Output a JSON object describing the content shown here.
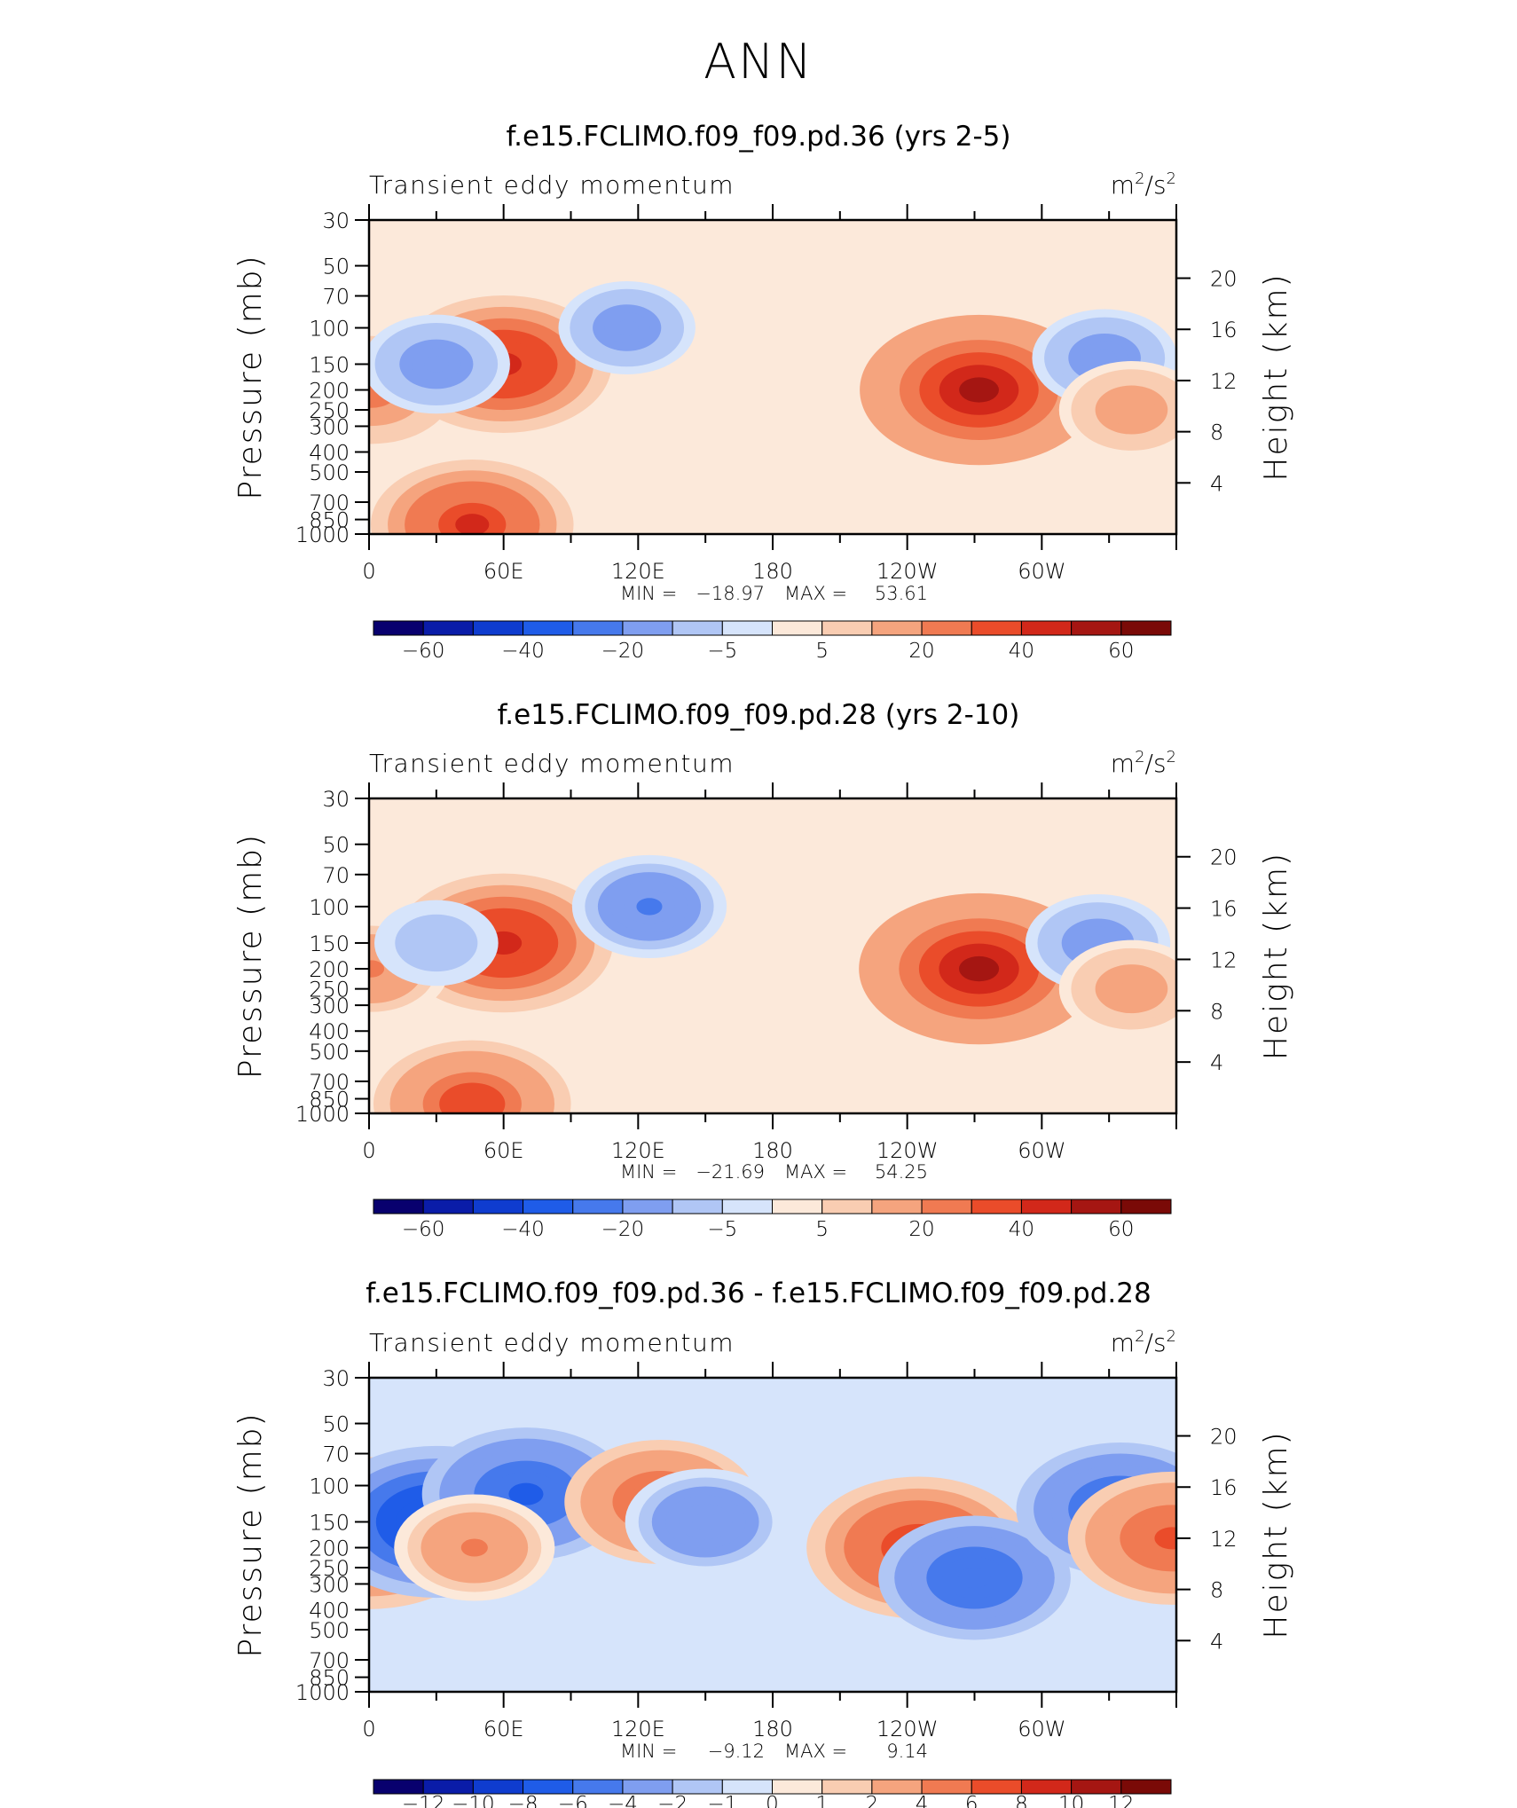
{
  "figure": {
    "title": "ANN"
  },
  "colors": {
    "absolute_scale": [
      "#08006e",
      "#0a1ca8",
      "#0f3ccf",
      "#1f5ce8",
      "#4679ec",
      "#7f9ef0",
      "#b0c6f5",
      "#d6e4fb",
      "#fce9da",
      "#f9cdb2",
      "#f5a47e",
      "#f07a52",
      "#ea4c2a",
      "#d2281a",
      "#a51612",
      "#7a0a07"
    ],
    "difference_scale": [
      "#08006e",
      "#0a1ca8",
      "#0f3ccf",
      "#1f5ce8",
      "#4679ec",
      "#7f9ef0",
      "#b0c6f5",
      "#d6e4fb",
      "#fce9da",
      "#f9cdb2",
      "#f5a47e",
      "#f07a52",
      "#ea4c2a",
      "#d2281a",
      "#a51612",
      "#7a0a07"
    ],
    "topography": "#000000"
  },
  "chart_data": [
    {
      "type": "heatmap",
      "title": "f.e15.FCLIMO.f09_f09.pd.36 (yrs 2-5)",
      "variable": "Transient eddy momentum",
      "units_base": "m",
      "units_mid": "/s",
      "units_sup1": "2",
      "units_sup2": "2",
      "ylabel": "Pressure (mb)",
      "ylabel_right": "Height (km)",
      "x_ticks": [
        "0",
        "60E",
        "120E",
        "180",
        "120W",
        "60W"
      ],
      "y_ticks": [
        "30",
        "50",
        "70",
        "100",
        "150",
        "200",
        "250",
        "300",
        "400",
        "500",
        "700",
        "850",
        "1000"
      ],
      "y_ticks_right": [
        "20",
        "16",
        "12",
        "8",
        "4"
      ],
      "min_label": "MIN =",
      "min_value": "−18.97",
      "max_label": "MAX =",
      "max_value": "53.61",
      "colorbar_labels": [
        "−60",
        "−40",
        "−20",
        "−5",
        "5",
        "20",
        "40",
        "60"
      ],
      "features": [
        {
          "lon": 60,
          "p": 150,
          "value": 45
        },
        {
          "lon": 272,
          "p": 200,
          "value": 53.61
        },
        {
          "lon": 1,
          "p": 200,
          "value": 25
        },
        {
          "lon": 115,
          "p": 100,
          "value": -15
        },
        {
          "lon": 30,
          "p": 150,
          "value": -18.97
        },
        {
          "lon": 328,
          "p": 140,
          "value": -18
        },
        {
          "lon": 340,
          "p": 250,
          "value": 18
        },
        {
          "lon": 46,
          "p": 900,
          "value": 40
        }
      ]
    },
    {
      "type": "heatmap",
      "title": "f.e15.FCLIMO.f09_f09.pd.28 (yrs 2-10)",
      "variable": "Transient eddy momentum",
      "units_base": "m",
      "units_mid": "/s",
      "units_sup1": "2",
      "units_sup2": "2",
      "ylabel": "Pressure (mb)",
      "ylabel_right": "Height (km)",
      "x_ticks": [
        "0",
        "60E",
        "120E",
        "180",
        "120W",
        "60W"
      ],
      "y_ticks": [
        "30",
        "50",
        "70",
        "100",
        "150",
        "200",
        "250",
        "300",
        "400",
        "500",
        "700",
        "850",
        "1000"
      ],
      "y_ticks_right": [
        "20",
        "16",
        "12",
        "8",
        "4"
      ],
      "min_label": "MIN =",
      "min_value": "−21.69",
      "max_label": "MAX =",
      "max_value": "54.25",
      "colorbar_labels": [
        "−60",
        "−40",
        "−20",
        "−5",
        "5",
        "20",
        "40",
        "60"
      ],
      "features": [
        {
          "lon": 60,
          "p": 150,
          "value": 46
        },
        {
          "lon": 272,
          "p": 200,
          "value": 54.25
        },
        {
          "lon": 1,
          "p": 200,
          "value": 22
        },
        {
          "lon": 125,
          "p": 100,
          "value": -21.69
        },
        {
          "lon": 30,
          "p": 150,
          "value": -10
        },
        {
          "lon": 325,
          "p": 150,
          "value": -18
        },
        {
          "lon": 340,
          "p": 250,
          "value": 18
        },
        {
          "lon": 46,
          "p": 900,
          "value": 38
        }
      ]
    },
    {
      "type": "heatmap",
      "title": "f.e15.FCLIMO.f09_f09.pd.36 - f.e15.FCLIMO.f09_f09.pd.28",
      "variable": "Transient eddy momentum",
      "units_base": "m",
      "units_mid": "/s",
      "units_sup1": "2",
      "units_sup2": "2",
      "ylabel": "Pressure (mb)",
      "ylabel_right": "Height (km)",
      "x_ticks": [
        "0",
        "60E",
        "120E",
        "180",
        "120W",
        "60W"
      ],
      "y_ticks": [
        "30",
        "50",
        "70",
        "100",
        "150",
        "200",
        "250",
        "300",
        "400",
        "500",
        "700",
        "850",
        "1000"
      ],
      "y_ticks_right": [
        "20",
        "16",
        "12",
        "8",
        "4"
      ],
      "min_label": "MIN =",
      "min_value": "−9.12",
      "max_label": "MAX =",
      "max_value": "9.14",
      "colorbar_labels": [
        "−12",
        "−10",
        "−8",
        "−6",
        "−4",
        "−2",
        "−1",
        "0",
        "1",
        "2",
        "4",
        "6",
        "8",
        "10",
        "12"
      ],
      "features": [
        {
          "lon": 0,
          "p": 170,
          "value": 9.14
        },
        {
          "lon": 30,
          "p": 150,
          "value": -9.12
        },
        {
          "lon": 70,
          "p": 110,
          "value": -7
        },
        {
          "lon": 130,
          "p": 120,
          "value": 6
        },
        {
          "lon": 245,
          "p": 200,
          "value": 8
        },
        {
          "lon": 270,
          "p": 280,
          "value": -6
        },
        {
          "lon": 335,
          "p": 130,
          "value": -7
        },
        {
          "lon": 358,
          "p": 180,
          "value": 7
        },
        {
          "lon": 47,
          "p": 200,
          "value": 4
        },
        {
          "lon": 150,
          "p": 150,
          "value": -4
        }
      ]
    }
  ]
}
